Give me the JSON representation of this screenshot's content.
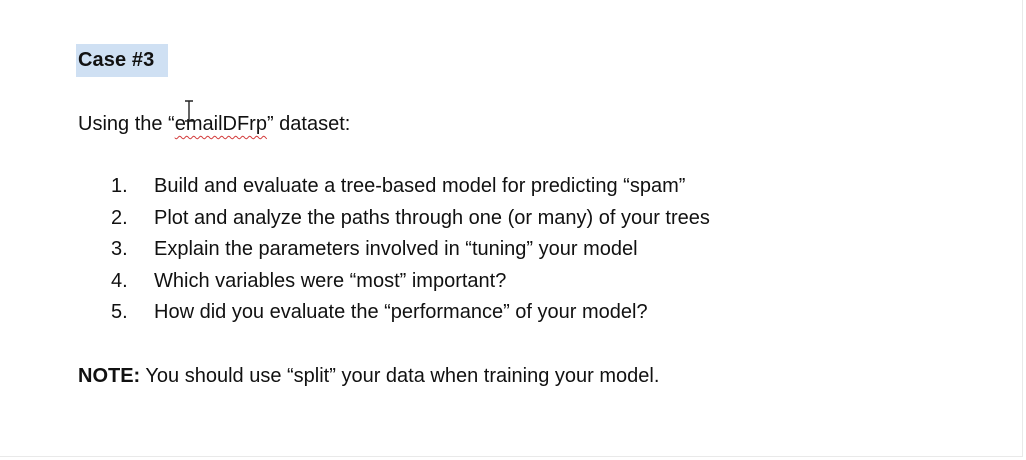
{
  "heading": "Case #3",
  "intro": {
    "prefix": "Using the “",
    "dataset": "emailDFrp",
    "suffix": "” dataset:"
  },
  "tasks": [
    {
      "num": "1.",
      "text": "Build and evaluate a tree-based model for predicting “spam”"
    },
    {
      "num": "2.",
      "text": "Plot and analyze the paths through one (or many) of your trees"
    },
    {
      "num": "3.",
      "text": "Explain the parameters involved in “tuning” your model"
    },
    {
      "num": "4.",
      "text": "Which variables were “most” important?"
    },
    {
      "num": "5.",
      "text": "How did you evaluate the “performance” of your model?"
    }
  ],
  "note": {
    "label": "NOTE:",
    "text": " You should use “split” your data when training your model."
  },
  "colors": {
    "selection": "#cfe0f3",
    "spellcheck": "#d23a3a"
  },
  "icons": {
    "cursor": "i-beam-cursor-icon"
  }
}
